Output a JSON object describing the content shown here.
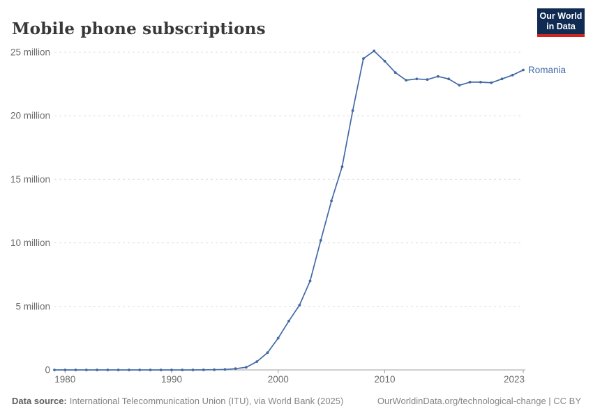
{
  "header": {
    "title": "Mobile phone subscriptions",
    "logo": {
      "line1": "Our World",
      "line2": "in Data"
    }
  },
  "chart_data": {
    "type": "line",
    "title": "Mobile phone subscriptions",
    "unit": "million",
    "x": [
      1979,
      1980,
      1981,
      1982,
      1983,
      1984,
      1985,
      1986,
      1987,
      1988,
      1989,
      1990,
      1991,
      1992,
      1993,
      1994,
      1995,
      1996,
      1997,
      1998,
      1999,
      2000,
      2001,
      2002,
      2003,
      2004,
      2005,
      2006,
      2007,
      2008,
      2009,
      2010,
      2011,
      2012,
      2013,
      2014,
      2015,
      2016,
      2017,
      2018,
      2019,
      2020,
      2021,
      2022,
      2023
    ],
    "series": [
      {
        "name": "Romania",
        "color": "#4169A5",
        "values": [
          0,
          0,
          0,
          0,
          0,
          0,
          0,
          0,
          0,
          0,
          0,
          0,
          0,
          0.002,
          0.006,
          0.015,
          0.04,
          0.1,
          0.21,
          0.65,
          1.36,
          2.5,
          3.85,
          5.1,
          7.0,
          10.2,
          13.3,
          16.0,
          20.4,
          24.5,
          25.1,
          24.3,
          23.4,
          22.8,
          22.9,
          22.85,
          23.1,
          22.9,
          22.4,
          22.65,
          22.65,
          22.6,
          22.9,
          23.2,
          23.6
        ]
      }
    ],
    "ylim": [
      0,
      25
    ],
    "y_ticks": [
      0,
      5,
      10,
      15,
      20,
      25
    ],
    "y_tick_labels": [
      "0",
      "5 million",
      "10 million",
      "15 million",
      "20 million",
      "25 million"
    ],
    "x_ticks": [
      1980,
      1990,
      2000,
      2010,
      2023
    ],
    "x_tick_labels": [
      "1980",
      "1990",
      "2000",
      "2010",
      "2023"
    ],
    "grid": "horizontal-dashed",
    "legend": "inline-end-label"
  },
  "footer": {
    "datasource_label": "Data source:",
    "datasource_text": "International Telecommunication Union (ITU), via World Bank (2025)",
    "link_text": "OurWorldinData.org/technological-change | CC BY"
  },
  "colors": {
    "line": "#4169A5",
    "logo_bg": "#0F2B52",
    "logo_accent": "#CE261F",
    "grid": "#DCDCDC",
    "axis": "#9E9E9E",
    "tick_text": "#6B6B6B",
    "title_text": "#383838",
    "footer_text": "#858585"
  }
}
